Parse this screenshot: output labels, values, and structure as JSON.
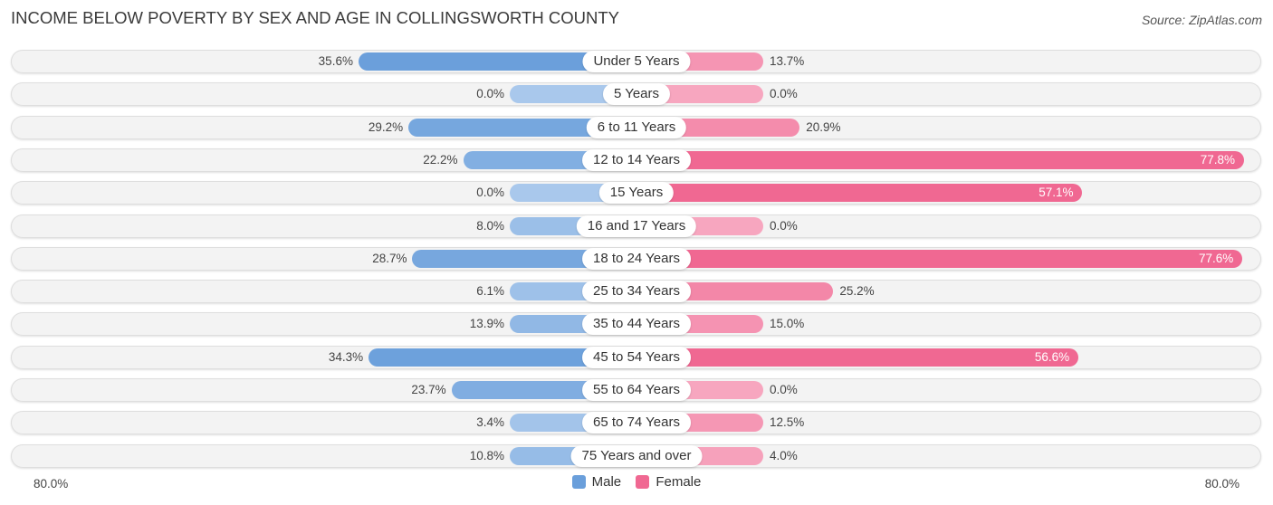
{
  "title": "INCOME BELOW POVERTY BY SEX AND AGE IN COLLINGSWORTH COUNTY",
  "source": "Source: ZipAtlas.com",
  "colors": {
    "male_strong": "#6a9fdb",
    "male_light": "#a9c8ec",
    "female_strong": "#f06892",
    "female_light": "#f7a6bf",
    "row_background": "#f3f3f3"
  },
  "chart_data": {
    "type": "bar",
    "orientation": "horizontal-diverging",
    "title": "INCOME BELOW POVERTY BY SEX AND AGE IN COLLINGSWORTH COUNTY",
    "xlabel": "",
    "ylabel": "",
    "xlim": [
      -80.0,
      80.0
    ],
    "axis_labels": {
      "left": "80.0%",
      "right": "80.0%"
    },
    "legend": {
      "position": "bottom-center",
      "entries": [
        "Male",
        "Female"
      ]
    },
    "categories": [
      "Under 5 Years",
      "5 Years",
      "6 to 11 Years",
      "12 to 14 Years",
      "15 Years",
      "16 and 17 Years",
      "18 to 24 Years",
      "25 to 34 Years",
      "35 to 44 Years",
      "45 to 54 Years",
      "55 to 64 Years",
      "65 to 74 Years",
      "75 Years and over"
    ],
    "series": [
      {
        "name": "Male",
        "values": [
          35.6,
          0.0,
          29.2,
          22.2,
          0.0,
          8.0,
          28.7,
          6.1,
          13.9,
          34.3,
          23.7,
          3.4,
          10.8
        ],
        "labels": [
          "35.6%",
          "0.0%",
          "29.2%",
          "22.2%",
          "0.0%",
          "8.0%",
          "28.7%",
          "6.1%",
          "13.9%",
          "34.3%",
          "23.7%",
          "3.4%",
          "10.8%"
        ]
      },
      {
        "name": "Female",
        "values": [
          13.7,
          0.0,
          20.9,
          77.8,
          57.1,
          0.0,
          77.6,
          25.2,
          15.0,
          56.6,
          0.0,
          12.5,
          4.0
        ],
        "labels": [
          "13.7%",
          "0.0%",
          "20.9%",
          "77.8%",
          "57.1%",
          "0.0%",
          "77.6%",
          "25.2%",
          "15.0%",
          "56.6%",
          "0.0%",
          "12.5%",
          "4.0%"
        ]
      }
    ]
  }
}
